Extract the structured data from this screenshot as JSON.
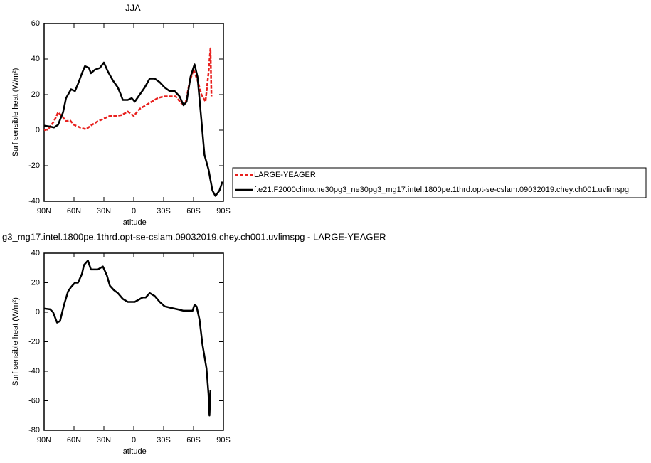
{
  "chart_data": [
    {
      "type": "line",
      "title": "JJA",
      "xlabel": "latitude",
      "ylabel": "Surf sensible heat (W/m²)",
      "x": [
        90,
        86,
        80,
        76,
        72,
        68,
        64,
        60,
        54,
        48,
        42,
        36,
        30,
        24,
        18,
        12,
        6,
        0,
        -6,
        -12,
        -18,
        -24,
        -30,
        -36,
        -42,
        -48,
        -52,
        -56,
        -60,
        -64,
        -68,
        -72,
        -75,
        -77,
        -78
      ],
      "xlim": [
        90,
        -90
      ],
      "xticks": [
        {
          "value": 90,
          "label": "90N"
        },
        {
          "value": 60,
          "label": "60N"
        },
        {
          "value": 30,
          "label": "30N"
        },
        0,
        {
          "value": -30,
          "label": "30S"
        },
        {
          "value": -60,
          "label": "60S"
        },
        {
          "value": -90,
          "label": "90S"
        }
      ],
      "ylim": [
        -40,
        60
      ],
      "yticks": [
        -40,
        -20,
        0,
        20,
        40,
        60
      ],
      "series": [
        {
          "name": "LARGE-YEAGER",
          "color": "#e8201e",
          "dashed": true,
          "values": [
            0,
            0.5,
            5,
            10,
            8,
            5,
            5.5,
            3,
            1.5,
            0.5,
            3,
            5,
            6.5,
            8,
            8,
            8.5,
            10.5,
            8,
            12,
            14,
            16,
            18,
            19,
            19,
            19,
            15,
            15,
            27,
            34,
            28,
            20,
            16,
            32,
            46,
            19
          ]
        },
        {
          "name": "f.e21.F2000climo.ne30pg3_ne30pg3_mg17.intel.1800pe.1thrd.opt-se-cslam.09032019.chey.ch001.uvlimspg",
          "color": "#000000",
          "dashed": false,
          "x": [
            90,
            84,
            80,
            76,
            71,
            68,
            63,
            59,
            56,
            52,
            49,
            45,
            43,
            39,
            34,
            30,
            26,
            21,
            16,
            13,
            11,
            6,
            2,
            -1,
            -6,
            -11,
            -16,
            -21,
            -26,
            -31,
            -36,
            -41,
            -46,
            -50,
            -53,
            -57,
            -61,
            -64,
            -68,
            -71,
            -75,
            -79,
            -82,
            -86,
            -89
          ],
          "values": [
            2.5,
            2,
            1.5,
            3,
            10,
            18,
            23,
            22,
            26,
            32,
            36,
            35,
            32,
            34,
            35,
            38,
            33,
            28,
            24,
            20,
            17,
            17,
            18,
            16,
            20,
            24,
            29,
            29,
            27,
            24,
            22,
            22,
            19,
            14,
            16,
            30,
            37,
            30,
            5,
            -14,
            -22,
            -34,
            -37,
            -34,
            -29
          ]
        }
      ]
    },
    {
      "type": "line",
      "title": "g3_mg17.intel.1800pe.1thrd.opt-se-cslam.09032019.chey.ch001.uvlimspg - LARGE-YEAGER",
      "xlabel": "latitude",
      "ylabel": "Surf sensible heat (W/m²)",
      "x": [
        90,
        84,
        81,
        77,
        74,
        70,
        66,
        63,
        59,
        56,
        52,
        50,
        46,
        43,
        39,
        36,
        31,
        27,
        24,
        20,
        16,
        11,
        6,
        -1,
        -9,
        -12,
        -16,
        -21,
        -26,
        -31,
        -37,
        -44,
        -50,
        -54,
        -59,
        -61,
        -63,
        -66,
        -69,
        -73,
        -75,
        -76,
        -77
      ],
      "xlim": [
        90,
        -90
      ],
      "xticks": [
        {
          "value": 90,
          "label": "90N"
        },
        {
          "value": 60,
          "label": "60N"
        },
        {
          "value": 30,
          "label": "30N"
        },
        0,
        {
          "value": -30,
          "label": "30S"
        },
        {
          "value": -60,
          "label": "60S"
        },
        {
          "value": -90,
          "label": "90S"
        }
      ],
      "ylim": [
        -80,
        40
      ],
      "yticks": [
        -80,
        -60,
        -40,
        -20,
        0,
        20,
        40
      ],
      "color": "#000000",
      "values": [
        2.5,
        2,
        0,
        -7,
        -6,
        5,
        14,
        17,
        20,
        20,
        26,
        32,
        35,
        29,
        29,
        29,
        31,
        25,
        18,
        15,
        13,
        9,
        7,
        7,
        10,
        10,
        13,
        11,
        7,
        4,
        3,
        2,
        1,
        1,
        1,
        5,
        4,
        -5,
        -22,
        -38,
        -55,
        -70,
        -53
      ]
    }
  ]
}
